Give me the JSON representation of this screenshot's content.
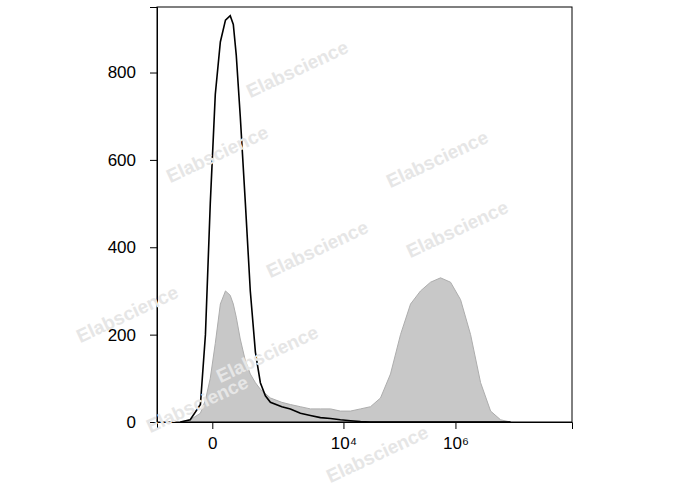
{
  "chart_data": {
    "type": "line",
    "watermark": "Elabscience",
    "log": "x",
    "grid": false,
    "x": [
      -125,
      -68,
      -29,
      -15,
      -4,
      6,
      18,
      33,
      50,
      63,
      77,
      99,
      133,
      173,
      224,
      285,
      361,
      454,
      754,
      1090,
      1670,
      2540,
      3860,
      5850,
      8830,
      13350,
      20200,
      30500,
      46000,
      69400,
      104700,
      158000,
      238000,
      359000,
      542000,
      818000,
      1234000,
      1862000,
      2810000,
      4240000,
      6390000,
      9600000
    ],
    "series": [
      {
        "type": "area",
        "color": "#c8c8c8",
        "values": [
          0,
          5,
          20,
          50,
          100,
          180,
          270,
          300,
          290,
          270,
          240,
          190,
          140,
          110,
          90,
          75,
          65,
          55,
          45,
          40,
          35,
          30,
          30,
          30,
          25,
          25,
          30,
          35,
          55,
          110,
          200,
          270,
          300,
          320,
          330,
          320,
          280,
          200,
          90,
          25,
          5,
          0
        ]
      },
      {
        "type": "line",
        "color": "#000000",
        "values": [
          0,
          5,
          40,
          200,
          500,
          750,
          870,
          920,
          930,
          910,
          840,
          700,
          500,
          300,
          160,
          90,
          60,
          45,
          35,
          30,
          20,
          15,
          10,
          8,
          5,
          3,
          1,
          0,
          0,
          0,
          0,
          0,
          0,
          0,
          0,
          0,
          0,
          0,
          0,
          0,
          0,
          0
        ]
      }
    ],
    "xlim": [
      -400,
      120000000
    ],
    "xticks": [
      0,
      {
        "value": 10000,
        "label": "10⁴"
      },
      {
        "value": 1000000,
        "label": "10⁶"
      }
    ],
    "ylim": [
      0,
      950
    ],
    "yticks": [
      0,
      200,
      400,
      600,
      800
    ]
  }
}
